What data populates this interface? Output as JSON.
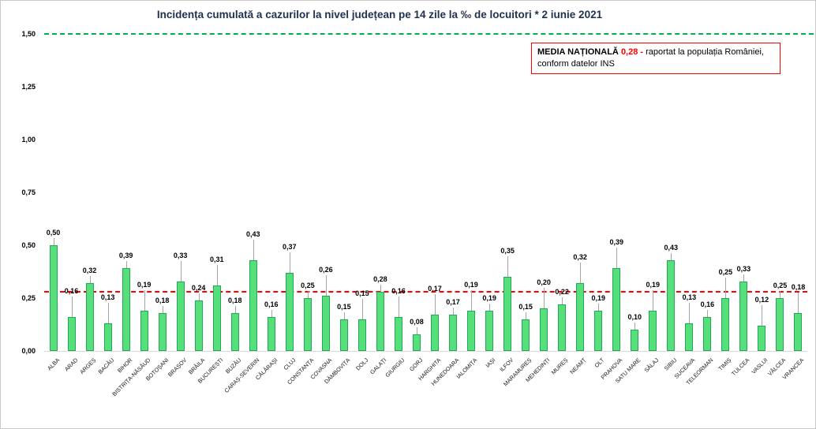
{
  "title": "Incidența cumulată a cazurilor la nivel județean pe 14 zile la ‰ de locuitori *  2 iunie 2021",
  "legend": {
    "label": "MEDIA NAȚIONALĂ",
    "value": "0,28 -",
    "text1": "raportat la populația României,",
    "text2": "conform datelor INS"
  },
  "colors": {
    "bar_fill": "#55e07b",
    "bar_border": "#25a855",
    "average_line": "#ff0000",
    "upper_line": "#00b050",
    "title_text": "#1f3050"
  },
  "chart_data": {
    "type": "bar",
    "title": "Incidența cumulată a cazurilor la nivel județean pe 14 zile la ‰ de locuitori * 2 iunie 2021",
    "xlabel": "",
    "ylabel": "",
    "ylim": [
      0,
      1.5
    ],
    "grid": false,
    "national_average": 0.28,
    "yticks": {
      "values": [
        0,
        0.25,
        0.5,
        0.75,
        1.0,
        1.25,
        1.5
      ],
      "labels": [
        "0,00",
        "0,25",
        "0,50",
        "0,75",
        "1,00",
        "1,25",
        "1,50"
      ]
    },
    "categories": [
      "ALBA",
      "ARAD",
      "ARGEȘ",
      "BACĂU",
      "BIHOR",
      "BISTRIȚA-NĂSĂUD",
      "BOTOȘANI",
      "BRAȘOV",
      "BRĂILA",
      "BUCUREȘTI",
      "BUZĂU",
      "CARAȘ-SEVERIN",
      "CĂLĂRAȘI",
      "CLUJ",
      "CONSTANȚA",
      "COVASNA",
      "DÂMBOVIȚA",
      "DOLJ",
      "GALAȚI",
      "GIURGIU",
      "GORJ",
      "HARGHITA",
      "HUNEDOARA",
      "IALOMIȚA",
      "IAȘI",
      "ILFOV",
      "MARAMUREȘ",
      "MEHEDINȚI",
      "MUREȘ",
      "NEAMȚ",
      "OLT",
      "PRAHOVA",
      "SATU MARE",
      "SĂLAJ",
      "SIBIU",
      "SUCEAVA",
      "TELEORMAN",
      "TIMIȘ",
      "TULCEA",
      "VASLUI",
      "VÂLCEA",
      "VRANCEA"
    ],
    "values": [
      0.5,
      0.16,
      0.32,
      0.13,
      0.39,
      0.19,
      0.18,
      0.33,
      0.24,
      0.31,
      0.18,
      0.43,
      0.16,
      0.37,
      0.25,
      0.26,
      0.15,
      0.15,
      0.28,
      0.16,
      0.08,
      0.17,
      0.17,
      0.19,
      0.19,
      0.35,
      0.15,
      0.2,
      0.22,
      0.32,
      0.19,
      0.39,
      0.1,
      0.19,
      0.43,
      0.13,
      0.16,
      0.25,
      0.33,
      0.12,
      0.25,
      0.18
    ]
  }
}
